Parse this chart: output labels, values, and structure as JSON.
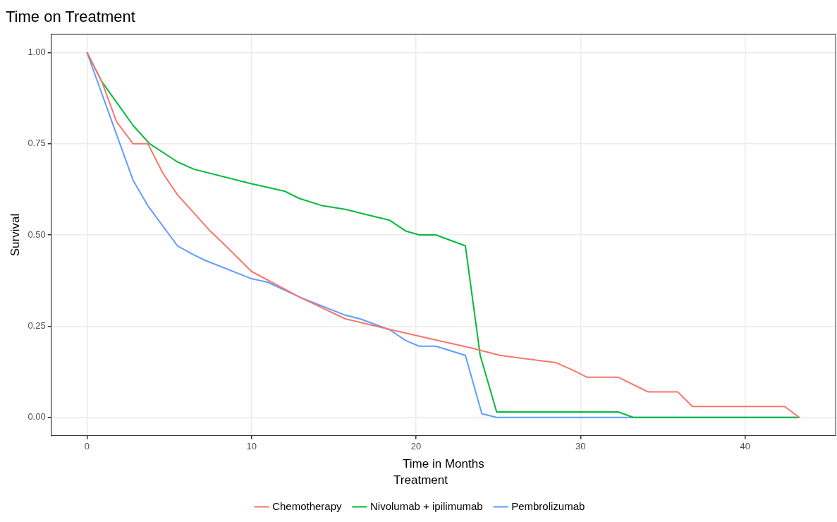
{
  "chart_data": {
    "type": "line",
    "title": "Time on Treatment",
    "xlabel": "Time in Months",
    "ylabel": "Survival",
    "legend_title": "Treatment",
    "series": [
      {
        "name": "Chemotherapy",
        "color": "#f8766d",
        "x": [
          0,
          0.9,
          1.8,
          2.8,
          3.7,
          4.6,
          5.5,
          6.5,
          7.5,
          8.2,
          10.0,
          12.9,
          15.7,
          18.5,
          21.4,
          23.4,
          25.1,
          28.5,
          29.5,
          30.4,
          32.3,
          34.1,
          35.9,
          36.8,
          42.4,
          43.3
        ],
        "values": [
          1.0,
          0.92,
          0.81,
          0.75,
          0.75,
          0.67,
          0.61,
          0.56,
          0.51,
          0.48,
          0.4,
          0.33,
          0.27,
          0.24,
          0.21,
          0.19,
          0.17,
          0.15,
          0.13,
          0.11,
          0.11,
          0.07,
          0.07,
          0.03,
          0.03,
          0.0
        ]
      },
      {
        "name": "Nivolumab + ipilimumab",
        "color": "#00ba38",
        "x": [
          0,
          0.9,
          2.8,
          3.8,
          5.5,
          6.5,
          10.0,
          11.0,
          12.0,
          12.9,
          14.3,
          15.7,
          16.6,
          18.4,
          19.4,
          20.2,
          21.2,
          23.0,
          23.9,
          24.9,
          32.3,
          33.2,
          43.3
        ],
        "values": [
          1.0,
          0.92,
          0.8,
          0.75,
          0.7,
          0.68,
          0.64,
          0.63,
          0.62,
          0.6,
          0.58,
          0.57,
          0.56,
          0.54,
          0.51,
          0.5,
          0.5,
          0.47,
          0.17,
          0.015,
          0.015,
          0.0,
          0.0
        ]
      },
      {
        "name": "Pembrolizumab",
        "color": "#619cff",
        "x": [
          0,
          2.8,
          3.7,
          5.5,
          6.5,
          7.2,
          10.0,
          11.0,
          12.9,
          15.7,
          16.6,
          18.4,
          19.4,
          20.2,
          21.2,
          23.0,
          24.0,
          24.9,
          43.3
        ],
        "values": [
          1.0,
          0.65,
          0.58,
          0.47,
          0.445,
          0.43,
          0.38,
          0.37,
          0.33,
          0.28,
          0.27,
          0.24,
          0.21,
          0.195,
          0.195,
          0.17,
          0.01,
          0.0,
          0.0
        ]
      }
    ],
    "xlim": [
      -2.17,
      45.5
    ],
    "xticks": [
      0,
      10,
      20,
      30,
      40
    ],
    "ylim": [
      -0.05,
      1.05
    ],
    "yticks": [
      {
        "value": 0,
        "label": "0.00"
      },
      {
        "value": 0.25,
        "label": "0.25"
      },
      {
        "value": 0.5,
        "label": "0.50"
      },
      {
        "value": 0.75,
        "label": "0.75"
      },
      {
        "value": 1,
        "label": "1.00"
      }
    ],
    "grid": true,
    "legend": "bottom",
    "marker": "none",
    "line_style": "solid"
  }
}
